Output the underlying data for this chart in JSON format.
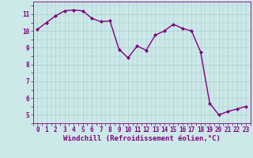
{
  "x": [
    0,
    1,
    2,
    3,
    4,
    5,
    6,
    7,
    8,
    9,
    10,
    11,
    12,
    13,
    14,
    15,
    16,
    17,
    18,
    19,
    20,
    21,
    22,
    23
  ],
  "y": [
    10.1,
    10.5,
    10.9,
    11.2,
    11.25,
    11.2,
    10.75,
    10.55,
    10.6,
    8.9,
    8.4,
    9.1,
    8.85,
    9.75,
    10.0,
    10.4,
    10.15,
    10.0,
    8.75,
    5.7,
    5.0,
    5.2,
    5.35,
    5.5
  ],
  "line_color": "#800080",
  "marker": "D",
  "marker_size": 2.0,
  "background_color": "#cce8e8",
  "grid_color": "#aacfcf",
  "xlabel": "Windchill (Refroidissement éolien,°C)",
  "ylabel": "",
  "xlim": [
    -0.5,
    23.5
  ],
  "ylim": [
    4.5,
    11.75
  ],
  "yticks": [
    5,
    6,
    7,
    8,
    9,
    10,
    11
  ],
  "xticks": [
    0,
    1,
    2,
    3,
    4,
    5,
    6,
    7,
    8,
    9,
    10,
    11,
    12,
    13,
    14,
    15,
    16,
    17,
    18,
    19,
    20,
    21,
    22,
    23
  ],
  "tick_fontsize": 5.5,
  "label_fontsize": 6.5,
  "line_width": 1.0
}
